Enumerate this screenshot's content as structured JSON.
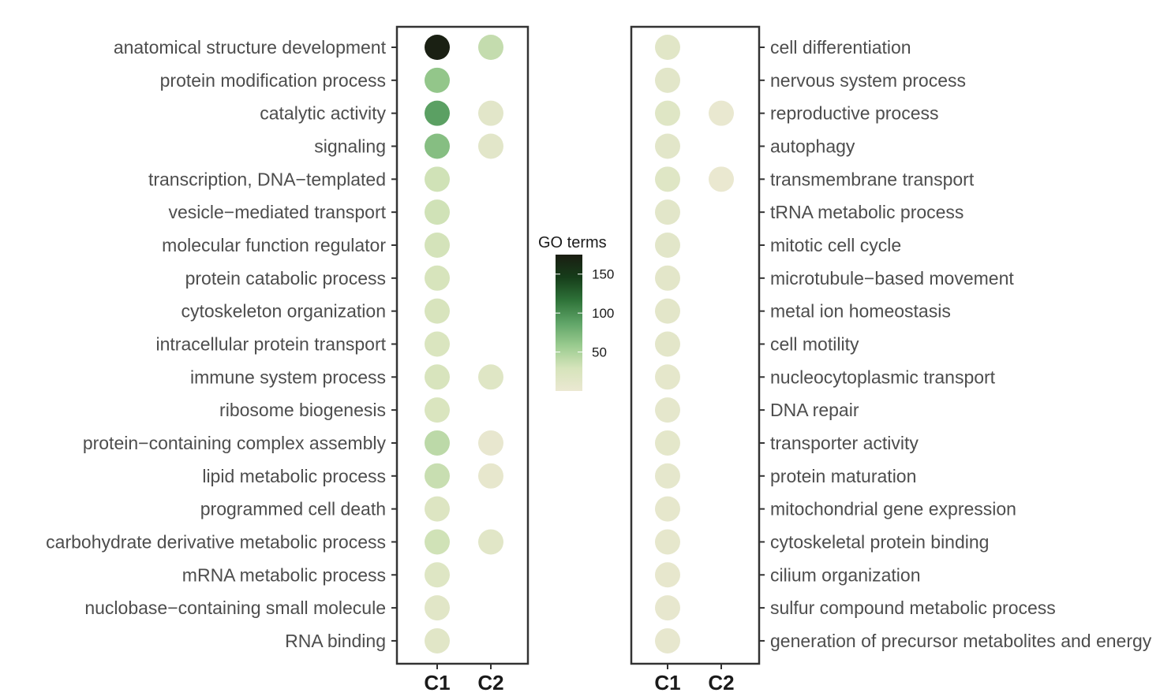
{
  "chart_data": {
    "type": "dot-heatmap",
    "columns": [
      "C1",
      "C2"
    ],
    "legend": {
      "title": "GO terms",
      "range": [
        0,
        175
      ],
      "ticks": [
        50,
        100,
        150
      ]
    },
    "colors": [
      "#ebe8d2",
      "#d6e4bb",
      "#9acb8f",
      "#5fa467",
      "#2e7238",
      "#163d1a",
      "#1a1d12"
    ],
    "panels": [
      {
        "name": "left",
        "label_side": "left",
        "terms": [
          {
            "label": "anatomical structure development",
            "values": [
              172,
              38
            ]
          },
          {
            "label": "protein modification process",
            "values": [
              62,
              null
            ]
          },
          {
            "label": "catalytic activity",
            "values": [
              90,
              12
            ]
          },
          {
            "label": "signaling",
            "values": [
              68,
              12
            ]
          },
          {
            "label": "transcription, DNA−templated",
            "values": [
              32,
              null
            ]
          },
          {
            "label": "vesicle−mediated transport",
            "values": [
              32,
              null
            ]
          },
          {
            "label": "molecular function regulator",
            "values": [
              30,
              null
            ]
          },
          {
            "label": "protein catabolic process",
            "values": [
              28,
              null
            ]
          },
          {
            "label": "cytoskeleton organization",
            "values": [
              26,
              null
            ]
          },
          {
            "label": "intracellular protein transport",
            "values": [
              24,
              null
            ]
          },
          {
            "label": "immune system process",
            "values": [
              26,
              16
            ]
          },
          {
            "label": "ribosome biogenesis",
            "values": [
              24,
              null
            ]
          },
          {
            "label": "protein−containing complex assembly",
            "values": [
              42,
              4
            ]
          },
          {
            "label": "lipid metabolic process",
            "values": [
              36,
              6
            ]
          },
          {
            "label": "programmed cell death",
            "values": [
              20,
              null
            ]
          },
          {
            "label": "carbohydrate derivative metabolic process",
            "values": [
              32,
              14
            ]
          },
          {
            "label": "mRNA metabolic process",
            "values": [
              18,
              null
            ]
          },
          {
            "label": "nuclobase−containing small molecule",
            "values": [
              14,
              null
            ]
          },
          {
            "label": "RNA binding",
            "values": [
              14,
              null
            ]
          }
        ]
      },
      {
        "name": "right",
        "label_side": "right",
        "terms": [
          {
            "label": "cell differentiation",
            "values": [
              14,
              null
            ]
          },
          {
            "label": "nervous system process",
            "values": [
              12,
              null
            ]
          },
          {
            "label": "reproductive process",
            "values": [
              16,
              3
            ]
          },
          {
            "label": "autophagy",
            "values": [
              12,
              null
            ]
          },
          {
            "label": "transmembrane transport",
            "values": [
              16,
              2
            ]
          },
          {
            "label": "tRNA metabolic process",
            "values": [
              12,
              null
            ]
          },
          {
            "label": "mitotic cell cycle",
            "values": [
              12,
              null
            ]
          },
          {
            "label": "microtubule−based movement",
            "values": [
              11,
              null
            ]
          },
          {
            "label": "metal ion homeostasis",
            "values": [
              11,
              null
            ]
          },
          {
            "label": "cell motility",
            "values": [
              11,
              null
            ]
          },
          {
            "label": "nucleocytoplasmic transport",
            "values": [
              9,
              null
            ]
          },
          {
            "label": "DNA repair",
            "values": [
              8,
              null
            ]
          },
          {
            "label": "transporter activity",
            "values": [
              10,
              null
            ]
          },
          {
            "label": "protein maturation",
            "values": [
              8,
              null
            ]
          },
          {
            "label": "mitochondrial gene expression",
            "values": [
              7,
              null
            ]
          },
          {
            "label": "cytoskeletal protein binding",
            "values": [
              7,
              null
            ]
          },
          {
            "label": "cilium organization",
            "values": [
              6,
              null
            ]
          },
          {
            "label": "sulfur compound metabolic process",
            "values": [
              5,
              null
            ]
          },
          {
            "label": "generation of precursor metabolites and energy",
            "values": [
              5,
              null
            ]
          }
        ]
      }
    ]
  }
}
